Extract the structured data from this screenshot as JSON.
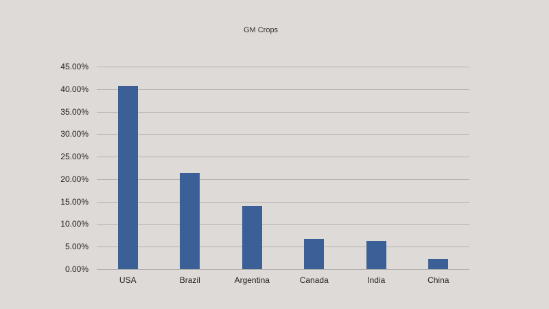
{
  "chart_data": {
    "type": "bar",
    "title": "GM Crops",
    "xlabel": "",
    "ylabel": "",
    "categories": [
      "USA",
      "Brazil",
      "Argentina",
      "Canada",
      "India",
      "China"
    ],
    "values": [
      40.7,
      21.3,
      14.0,
      6.7,
      6.2,
      2.3
    ],
    "value_format": "percent",
    "ylim": [
      0,
      45
    ],
    "yticks": [
      "0.00%",
      "5.00%",
      "10.00%",
      "15.00%",
      "20.00%",
      "25.00%",
      "30.00%",
      "35.00%",
      "40.00%",
      "45.00%"
    ],
    "grid": true,
    "legend": null,
    "bar_color": "#3b6098"
  }
}
